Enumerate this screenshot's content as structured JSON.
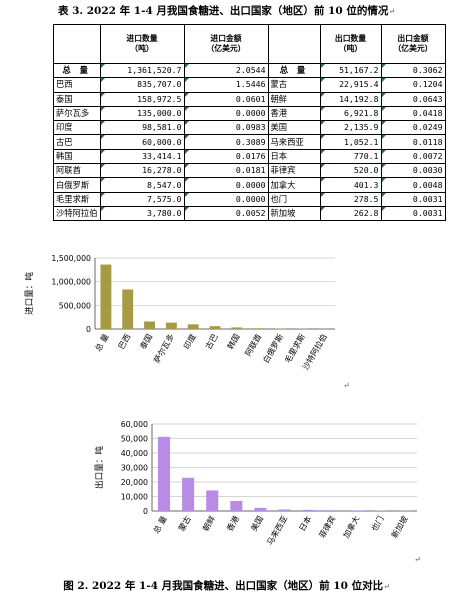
{
  "table_title": "表 3. 2022 年 1-4 月我国食糖进、出口国家（地区）前 10 位的情况",
  "return_mark": "↵",
  "headers": {
    "import_qty": [
      "进口数量",
      "（吨）"
    ],
    "import_amt": [
      "进口金额",
      "（亿美元）"
    ],
    "export_qty": [
      "出口数量",
      "（吨）"
    ],
    "export_amt": [
      "出口金额",
      "（亿美元）"
    ]
  },
  "total_label": "总 量",
  "total_row": {
    "import_qty": "1,361,520.7",
    "import_amt": "2.0544",
    "export_qty": "51,167.2",
    "export_amt": "0.3062"
  },
  "import_rows": [
    {
      "name": "巴西",
      "qty": "835,707.0",
      "amt": "1.5446"
    },
    {
      "name": "泰国",
      "qty": "158,972.5",
      "amt": "0.0601"
    },
    {
      "name": "萨尔瓦多",
      "qty": "135,000.0",
      "amt": "0.0000"
    },
    {
      "name": "印度",
      "qty": "98,581.0",
      "amt": "0.0983"
    },
    {
      "name": "古巴",
      "qty": "60,000.0",
      "amt": "0.3089"
    },
    {
      "name": "韩国",
      "qty": "33,414.1",
      "amt": "0.0176"
    },
    {
      "name": "阿联酋",
      "qty": "16,278.0",
      "amt": "0.0181"
    },
    {
      "name": "白俄罗斯",
      "qty": "8,547.0",
      "amt": "0.0000"
    },
    {
      "name": "毛里求斯",
      "qty": "7,575.0",
      "amt": "0.0000"
    },
    {
      "name": "沙特阿拉伯",
      "qty": "3,780.0",
      "amt": "0.0052"
    }
  ],
  "export_rows": [
    {
      "name": "蒙古",
      "qty": "22,915.4",
      "amt": "0.1204"
    },
    {
      "name": "朝鲜",
      "qty": "14,192.8",
      "amt": "0.0643"
    },
    {
      "name": "香港",
      "qty": "6,921.8",
      "amt": "0.0418"
    },
    {
      "name": "美国",
      "qty": "2,135.9",
      "amt": "0.0249"
    },
    {
      "name": "马来西亚",
      "qty": "1,052.1",
      "amt": "0.0118"
    },
    {
      "name": "日本",
      "qty": "770.1",
      "amt": "0.0072"
    },
    {
      "name": "菲律宾",
      "qty": "520.0",
      "amt": "0.0030"
    },
    {
      "name": "加拿大",
      "qty": "401.3",
      "amt": "0.0048"
    },
    {
      "name": "也门",
      "qty": "278.5",
      "amt": "0.0031"
    },
    {
      "name": "新加坡",
      "qty": "262.8",
      "amt": "0.0031"
    }
  ],
  "chart_data": [
    {
      "type": "bar",
      "ylabel": "进口量：吨",
      "categories": [
        "总 量",
        "巴西",
        "泰国",
        "萨尔瓦多",
        "印度",
        "古巴",
        "韩国",
        "阿联酋",
        "白俄罗斯",
        "毛里求斯",
        "沙特阿拉伯"
      ],
      "values": [
        1361520.7,
        835707.0,
        158972.5,
        135000.0,
        98581.0,
        60000.0,
        33414.1,
        16278.0,
        8547.0,
        7575.0,
        3780.0
      ],
      "yticks": [
        "0",
        "500,000",
        "1,000,000",
        "1,500,000"
      ],
      "ylim": [
        0,
        1500000
      ],
      "color": "#a79a45"
    },
    {
      "type": "bar",
      "ylabel": "出口量：吨",
      "categories": [
        "总 量",
        "蒙古",
        "朝鲜",
        "香港",
        "美国",
        "马来西亚",
        "日本",
        "菲律宾",
        "加拿大",
        "也门",
        "新加坡"
      ],
      "values": [
        51167.2,
        22915.4,
        14192.8,
        6921.8,
        2135.9,
        1052.1,
        770.1,
        520.0,
        401.3,
        278.5,
        262.8
      ],
      "yticks": [
        "0",
        "10,000",
        "20,000",
        "30,000",
        "40,000",
        "50,000",
        "60,000"
      ],
      "ylim": [
        0,
        60000
      ],
      "color": "#b88be6"
    }
  ],
  "figure_caption": "图 2. 2022 年 1-4 月我国食糖进、出口国家（地区）前 10 位对比"
}
